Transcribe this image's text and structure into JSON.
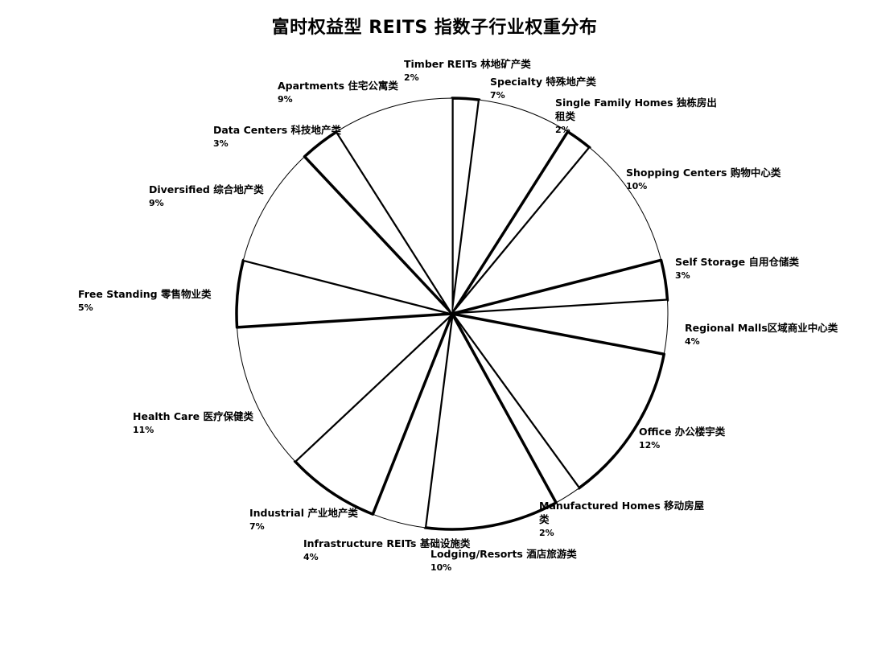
{
  "chart_data": {
    "type": "pie",
    "title": "富时权益型 REITS 指数子行业权重分布",
    "unit": "%",
    "slices": [
      {
        "label": "Timber REITs  林地矿产类",
        "value": 2,
        "display": "2%"
      },
      {
        "label": "Specialty 特殊地产类",
        "value": 7,
        "display": "7%"
      },
      {
        "label": "Single Family Homes  独栋房出租类",
        "value": 2,
        "display": "2%"
      },
      {
        "label": "Shopping Centers 购物中心类",
        "value": 10,
        "display": "10%"
      },
      {
        "label": "Self Storage  自用仓储类",
        "value": 3,
        "display": "3%"
      },
      {
        "label": "Regional Malls区域商业中心类",
        "value": 4,
        "display": "4%"
      },
      {
        "label": "Office  办公楼宇类",
        "value": 12,
        "display": "12%"
      },
      {
        "label": "Manufactured Homes 移动房屋类",
        "value": 2,
        "display": "2%"
      },
      {
        "label": "Lodging/Resorts  酒店旅游类",
        "value": 10,
        "display": "10%"
      },
      {
        "label": "Infrastructure REITs  基础设施类",
        "value": 4,
        "display": "4%"
      },
      {
        "label": "Industrial  产业地产类",
        "value": 7,
        "display": "7%"
      },
      {
        "label": "Health Care 医疗保健类",
        "value": 11,
        "display": "11%"
      },
      {
        "label": "Free Standing  零售物业类",
        "value": 5,
        "display": "5%"
      },
      {
        "label": "Diversified 综合地产类",
        "value": 9,
        "display": "9%"
      },
      {
        "label": "Data Centers 科技地产类",
        "value": 3,
        "display": "3%"
      },
      {
        "label": "Apartments 住宅公寓类",
        "value": 9,
        "display": "9%"
      }
    ],
    "legend": "none"
  }
}
